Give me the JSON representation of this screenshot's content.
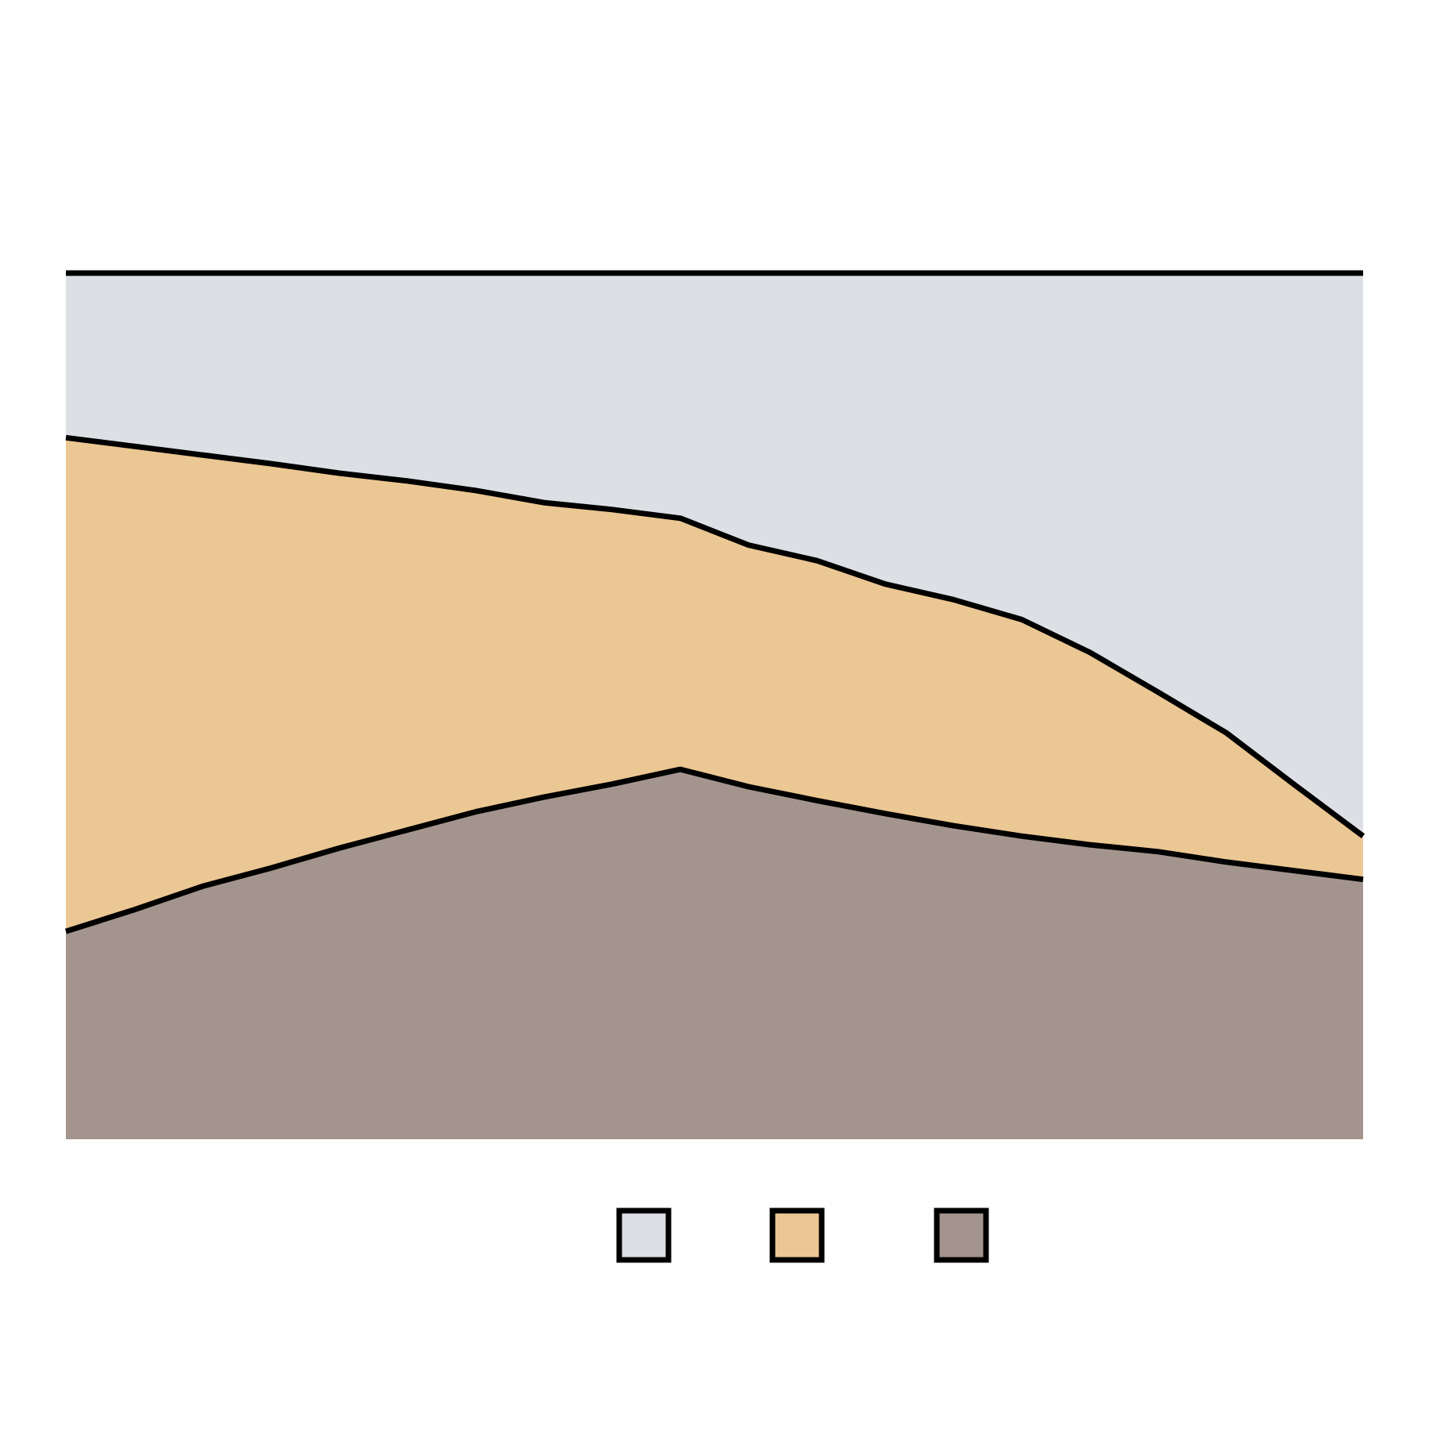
{
  "chart_data": {
    "type": "area",
    "stacked": true,
    "normalized": true,
    "x": [
      0,
      1,
      2,
      3,
      4,
      5,
      6,
      7,
      8,
      9,
      10,
      11,
      12,
      13,
      14,
      15,
      16,
      17,
      18,
      19
    ],
    "series": [
      {
        "color": "#a3958d",
        "values": [
          0.24,
          0.265,
          0.292,
          0.313,
          0.336,
          0.357,
          0.378,
          0.395,
          0.41,
          0.427,
          0.407,
          0.391,
          0.376,
          0.362,
          0.35,
          0.34,
          0.332,
          0.32,
          0.31,
          0.3
        ]
      },
      {
        "color": "#ebc793",
        "values": [
          0.57,
          0.535,
          0.498,
          0.467,
          0.433,
          0.403,
          0.371,
          0.34,
          0.317,
          0.29,
          0.279,
          0.277,
          0.265,
          0.261,
          0.25,
          0.222,
          0.184,
          0.149,
          0.099,
          0.05
        ]
      },
      {
        "color": "#dce0e5",
        "values": [
          0.19,
          0.2,
          0.21,
          0.22,
          0.231,
          0.24,
          0.251,
          0.265,
          0.273,
          0.283,
          0.314,
          0.332,
          0.359,
          0.377,
          0.4,
          0.438,
          0.484,
          0.531,
          0.591,
          0.65
        ]
      }
    ],
    "ylim": [
      0,
      1
    ],
    "grid": false,
    "legend_position": "bottom-center",
    "show_axes": false
  }
}
